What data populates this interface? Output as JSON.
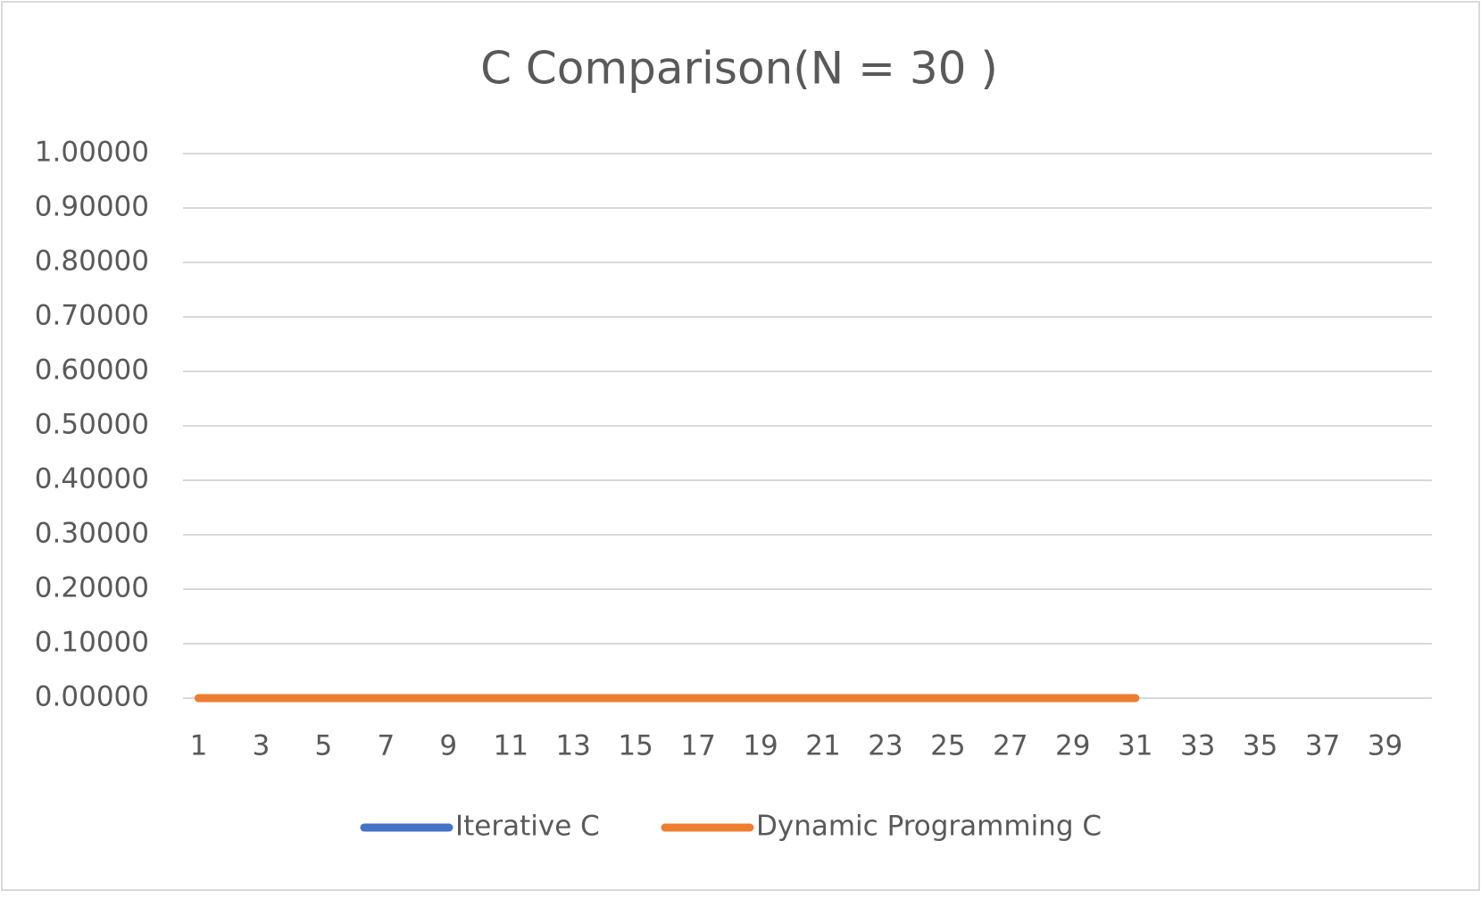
{
  "chart_data": {
    "type": "line",
    "title": "C Comparison(N = 30 )",
    "categories": [
      "1",
      null,
      "3",
      null,
      "5",
      null,
      "7",
      null,
      "9",
      null,
      "11",
      null,
      "13",
      null,
      "15",
      null,
      "17",
      null,
      "19",
      null,
      "21",
      null,
      "23",
      null,
      "25",
      null,
      "27",
      null,
      "29",
      null,
      "31",
      null,
      "33",
      null,
      "35",
      null,
      "37",
      null,
      "39",
      null
    ],
    "series": [
      {
        "name": "Iterative C",
        "color": "#4472c4",
        "values": [
          0,
          0,
          0,
          0,
          0,
          0,
          0,
          0,
          0,
          0,
          0,
          0,
          0,
          0,
          0,
          0,
          0,
          0,
          0,
          0,
          0,
          0,
          0,
          0,
          0,
          0,
          0,
          0,
          0,
          0,
          0,
          null,
          null,
          null,
          null,
          null,
          null,
          null,
          null,
          null
        ]
      },
      {
        "name": "Dynamic Programming C",
        "color": "#ed7d31",
        "values": [
          0,
          0,
          0,
          0,
          0,
          0,
          0,
          0,
          0,
          0,
          0,
          0,
          0,
          0,
          0,
          0,
          0,
          0,
          0,
          0,
          0,
          0,
          0,
          0,
          0,
          0,
          0,
          0,
          0,
          0,
          0,
          null,
          null,
          null,
          null,
          null,
          null,
          null,
          null,
          null
        ]
      }
    ],
    "ylim": [
      0,
      1
    ],
    "yticks": [
      {
        "value": 0,
        "label": "0.00000"
      },
      {
        "value": 0.1,
        "label": "0.10000"
      },
      {
        "value": 0.2,
        "label": "0.20000"
      },
      {
        "value": 0.3,
        "label": "0.30000"
      },
      {
        "value": 0.4,
        "label": "0.40000"
      },
      {
        "value": 0.5,
        "label": "0.50000"
      },
      {
        "value": 0.6,
        "label": "0.60000"
      },
      {
        "value": 0.7,
        "label": "0.70000"
      },
      {
        "value": 0.8,
        "label": "0.80000"
      },
      {
        "value": 0.9,
        "label": "0.90000"
      },
      {
        "value": 1,
        "label": "1.00000"
      }
    ],
    "grid": true,
    "legend": "bottom"
  }
}
